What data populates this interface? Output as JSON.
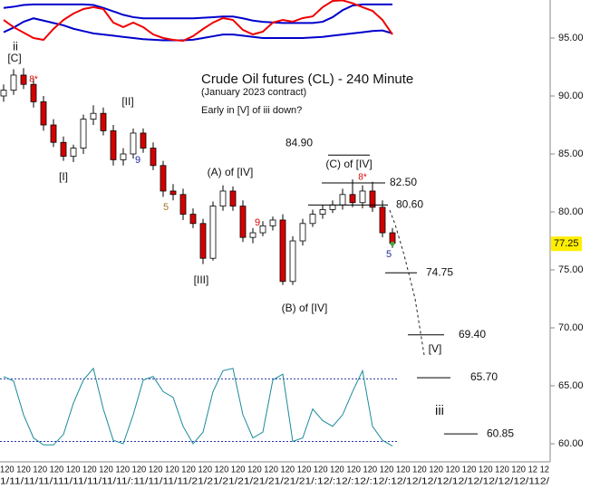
{
  "chart_data": {
    "type": "candlestick",
    "title": "Crude Oil futures (CL) - 240 Minute",
    "subtitle": "(January 2023 contract)",
    "note": "Early in [V] of iii down?",
    "ylim": [
      58.44,
      98.28
    ],
    "yticks": [
      {
        "value": 60,
        "label": "60.00"
      },
      {
        "value": 65,
        "label": "65.00"
      },
      {
        "value": 70,
        "label": "70.00"
      },
      {
        "value": 75,
        "label": "75.00"
      },
      {
        "value": 80,
        "label": "80.00"
      },
      {
        "value": 85,
        "label": "85.00"
      },
      {
        "value": 90,
        "label": "90.00"
      },
      {
        "value": 95,
        "label": "95.00"
      }
    ],
    "last_price": 77.25,
    "up_color": "#ffffff",
    "down_color": "#d40000",
    "open": [
      90.0,
      90.5,
      91.8,
      91.0,
      89.5,
      87.5,
      86.0,
      84.8,
      85.5,
      88.0,
      88.5,
      87.0,
      84.5,
      85.0,
      86.8,
      85.5,
      84.0,
      81.8,
      81.5,
      79.8,
      79.0,
      76.0,
      80.5,
      81.8,
      80.5,
      77.8,
      78.2,
      78.8,
      79.3,
      74.0,
      77.5,
      79.0,
      79.8,
      80.2,
      80.6,
      81.5,
      80.8,
      81.8,
      80.4,
      78.2
    ],
    "high": [
      91.0,
      92.3,
      92.4,
      91.5,
      90.0,
      88.0,
      86.5,
      85.8,
      88.4,
      89.2,
      89.0,
      87.5,
      85.5,
      87.2,
      87.2,
      86.0,
      84.4,
      82.4,
      82.0,
      80.3,
      79.4,
      80.9,
      82.3,
      82.2,
      81.0,
      78.6,
      79.2,
      79.6,
      79.8,
      77.9,
      79.4,
      80.2,
      80.6,
      81.0,
      82.0,
      82.8,
      82.3,
      82.6,
      81.0,
      78.6
    ],
    "low": [
      89.5,
      90.1,
      90.6,
      89.0,
      87.0,
      85.6,
      84.4,
      84.3,
      85.0,
      87.5,
      86.6,
      84.0,
      84.0,
      84.6,
      85.1,
      83.6,
      81.3,
      81.0,
      79.3,
      78.6,
      75.5,
      75.8,
      80.1,
      80.1,
      77.4,
      77.3,
      77.9,
      78.4,
      73.7,
      73.7,
      77.1,
      78.7,
      79.4,
      79.9,
      80.2,
      80.4,
      80.3,
      80.0,
      77.8,
      76.9
    ],
    "close": [
      90.5,
      91.8,
      91.0,
      89.5,
      87.5,
      86.0,
      84.8,
      85.5,
      88.0,
      88.5,
      87.0,
      84.5,
      85.0,
      86.8,
      85.5,
      84.0,
      81.8,
      81.5,
      79.8,
      79.0,
      76.0,
      80.5,
      81.8,
      80.5,
      77.8,
      78.2,
      78.8,
      79.3,
      74.0,
      77.5,
      79.0,
      79.8,
      80.2,
      80.6,
      81.5,
      80.8,
      81.8,
      80.4,
      78.2,
      77.3
    ],
    "bands": [
      {
        "color": "#0000cc",
        "values": [
          97.6,
          97.7,
          97.85,
          97.9,
          97.9,
          97.9,
          97.9,
          97.9,
          97.9,
          97.85,
          97.6,
          97.3,
          97.0,
          96.8,
          96.7,
          96.7,
          96.7,
          96.7,
          96.7,
          96.7,
          96.75,
          96.8,
          96.85,
          96.85,
          96.7,
          96.5,
          96.4,
          96.35,
          96.3,
          96.3,
          96.3,
          96.3,
          96.4,
          96.8,
          97.4,
          97.8,
          97.9,
          97.9,
          97.9,
          97.9
        ]
      },
      {
        "color": "#0000cc",
        "values": [
          95.5,
          95.9,
          96.4,
          96.7,
          96.5,
          96.3,
          96.1,
          95.8,
          95.6,
          95.4,
          95.3,
          95.2,
          95.1,
          95.0,
          94.9,
          94.85,
          94.8,
          94.8,
          94.8,
          94.85,
          95.0,
          95.15,
          95.3,
          95.3,
          95.2,
          95.1,
          95.0,
          95.0,
          95.0,
          95.0,
          95.0,
          95.05,
          95.1,
          95.2,
          95.3,
          95.4,
          95.5,
          95.6,
          95.65,
          95.4
        ]
      },
      {
        "color": "#ee0000",
        "values": [
          96.56,
          95.94,
          95.47,
          95.0,
          94.84,
          95.78,
          96.56,
          97.11,
          97.5,
          97.66,
          97.5,
          96.33,
          95.94,
          96.33,
          95.94,
          95.31,
          95.0,
          94.84,
          94.76,
          95.16,
          95.78,
          96.33,
          96.72,
          96.56,
          95.7,
          95.31,
          95.55,
          96.33,
          96.56,
          96.41,
          96.72,
          96.87,
          97.66,
          98.2,
          98.25,
          98.0,
          97.66,
          97.34,
          96.56,
          95.31
        ]
      }
    ],
    "oscillator": {
      "color": "#1a8a9a",
      "values": [
        65.8,
        65.4,
        62.5,
        60.5,
        59.9,
        59.9,
        60.8,
        63.5,
        65.5,
        66.5,
        63.0,
        60.3,
        60.0,
        62.5,
        65.5,
        65.8,
        64.5,
        64.0,
        61.5,
        60.0,
        61.0,
        64.5,
        66.3,
        66.5,
        62.5,
        60.5,
        61.0,
        65.5,
        66.0,
        60.2,
        60.5,
        63.0,
        62.0,
        61.5,
        62.5,
        64.5,
        66.3,
        61.5,
        60.3,
        59.8
      ]
    },
    "oscillator_levels": [
      65.6,
      60.2
    ],
    "levels": [
      {
        "value": 84.9,
        "label": "84.90"
      },
      {
        "value": 82.5,
        "label": "82.50"
      },
      {
        "value": 80.6,
        "label": "80.60"
      },
      {
        "value": 74.75,
        "label": "74.75"
      },
      {
        "value": 69.4,
        "label": "69.40"
      },
      {
        "value": 65.7,
        "label": "65.70"
      },
      {
        "value": 60.85,
        "label": "60.85"
      }
    ],
    "annotations": [
      {
        "text": "ii",
        "color": "#111111"
      },
      {
        "text": "[C]",
        "color": "#111111"
      },
      {
        "text": "8*",
        "color": "#d40000"
      },
      {
        "text": "[I]",
        "color": "#111111"
      },
      {
        "text": "[II]",
        "color": "#111111"
      },
      {
        "text": "9",
        "color": "#1a2a9a"
      },
      {
        "text": "5",
        "color": "#a07820"
      },
      {
        "text": "(A) of [IV]",
        "color": "#111111"
      },
      {
        "text": "9",
        "color": "#d40000"
      },
      {
        "text": "[III]",
        "color": "#111111"
      },
      {
        "text": "(B) of [IV]",
        "color": "#111111"
      },
      {
        "text": "(C) of [IV]",
        "color": "#111111"
      },
      {
        "text": "8*",
        "color": "#d40000"
      },
      {
        "text": "5",
        "color": "#1a2a9a"
      },
      {
        "text": "[V]",
        "color": "#111111"
      },
      {
        "text": "iii",
        "color": "#111111"
      }
    ],
    "x_axis_row1": "120 120 120 120 120 120 120 120 120 120 120 120 120 120 120 120 120 120 120 120 120 120 120 120 120 120 120 120 120 120 120 120 12 12",
    "x_axis_row2": "1/11/11/11/111/11/11/11/11/:11/11/11/11/21/21/21/21/21/21/21/21/:12/:12/:12/:12/:12/12/12/12/12/12/12/12/12/112/"
  }
}
